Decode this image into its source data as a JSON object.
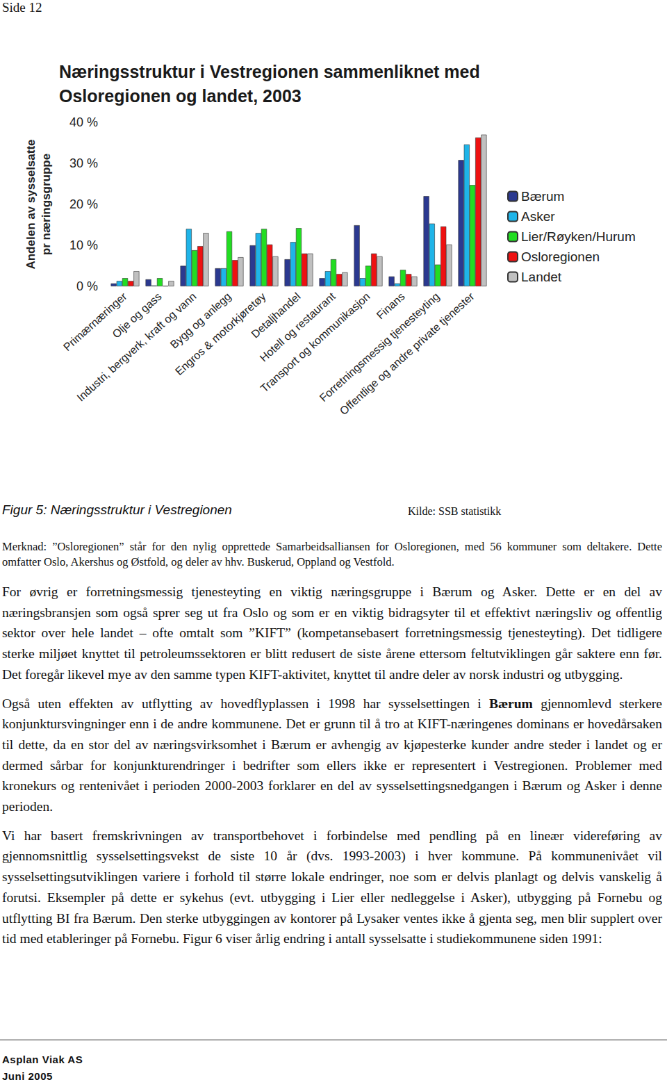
{
  "header": "Side 12",
  "chart_data": {
    "type": "bar",
    "title": "Næringsstruktur i Vestregionen sammenliknet med\nOsloregionen og landet, 2003",
    "y_label": "Andelen av sysselsatte\npr næringsgruppe",
    "categories": [
      "Primærnæringer",
      "Olje og gass",
      "Industri, bergverk, kraft og vann",
      "Bygg og anlegg",
      "Engros & motorkjøretøy",
      "Detaljhandel",
      "Hotell og restaurant",
      "Transport og kommunikasjon",
      "Finans",
      "Forretningsmessig tjenesteyting",
      "Offentlige og andre private tjenester"
    ],
    "series": [
      {
        "name": "Bærum",
        "color": "#2b3990",
        "values": [
          0.7,
          1.7,
          5.0,
          4.4,
          10.0,
          6.6,
          2.0,
          14.9,
          2.4,
          22.0,
          30.8
        ]
      },
      {
        "name": "Asker",
        "color": "#1fb4e8",
        "values": [
          1.3,
          0.2,
          14.0,
          4.4,
          13.0,
          10.8,
          3.7,
          2.0,
          0.7,
          15.3,
          34.6
        ]
      },
      {
        "name": "Lier/Røyken/Hurum",
        "color": "#22dd22",
        "values": [
          2.0,
          2.0,
          8.8,
          13.4,
          14.0,
          14.2,
          6.6,
          5.0,
          4.0,
          5.3,
          24.7
        ]
      },
      {
        "name": "Osloregionen",
        "color": "#ee1111",
        "values": [
          1.3,
          0.1,
          9.8,
          6.4,
          10.2,
          8.0,
          3.0,
          8.0,
          3.0,
          14.6,
          36.3
        ]
      },
      {
        "name": "Landet",
        "color": "#c0c0c0",
        "values": [
          3.7,
          1.3,
          13.0,
          7.1,
          7.3,
          8.0,
          3.4,
          7.3,
          2.4,
          10.2,
          37.0
        ]
      }
    ],
    "ylim": [
      0,
      40
    ],
    "yticks": [
      {
        "value": 0,
        "label": "0 %"
      },
      {
        "value": 10,
        "label": "10 %"
      },
      {
        "value": 20,
        "label": "20 %"
      },
      {
        "value": 30,
        "label": "30 %"
      },
      {
        "value": 40,
        "label": "40 %"
      }
    ],
    "grid": false,
    "legend": "right"
  },
  "caption": "Figur 5: Næringsstruktur i Vestregionen",
  "source": "Kilde: SSB statistikk",
  "note": "Merknad: ”Osloregionen” står for den nylig opprettede Samarbeidsalliansen for Osloregionen, med 56 kommuner som deltakere. Dette omfatter Oslo, Akershus og Østfold, og deler av hhv. Buskerud, Oppland og Vestfold.",
  "paragraphs": [
    [
      {
        "text": "For øvrig er forretningsmessig tjenesteyting en viktig næringsgruppe i Bærum og Asker. Dette er en del av næringsbransjen som også sprer seg ut fra Oslo og som er en viktig bidragsyter til et effektivt næringsliv og offentlig sektor over hele landet – ofte omtalt som ”KIFT” (kompetansebasert forretningsmessig tjenesteyting). Det tidligere sterke miljøet knyttet til petroleumssektoren er blitt redusert de siste årene ettersom feltutviklingen går saktere enn før. Det foregår likevel mye av den samme typen KIFT-aktivitet, knyttet til andre deler av norsk industri og utbygging."
      }
    ],
    [
      {
        "text": "Også uten effekten av utflytting av hovedflyplassen i 1998 har sysselsettingen i "
      },
      {
        "text": "Bærum",
        "bold": true
      },
      {
        "text": " gjennomlevd sterkere konjunktursvingninger enn i de andre kommunene. Det er grunn til å tro at KIFT-næringenes dominans er hovedårsaken til dette, da en stor del av næringsvirksomhet i Bærum er avhengig av kjøpesterke kunder andre steder i landet og er dermed sårbar for konjunkturendringer i bedrifter som ellers ikke er representert i Vestregionen. Problemer med kronekurs og rentenivået i perioden 2000-2003 forklarer en del av sysselsettingsnedgangen i Bærum og Asker i denne perioden."
      }
    ],
    [
      {
        "text": "Vi har basert fremskrivningen av transportbehovet i forbindelse med pendling på en lineær videreføring av gjennomsnittlig sysselsettingsvekst de siste 10 år (dvs. 1993-2003) i hver kommune. På kommunenivået vil sysselsettingsutviklingen variere i forhold til større lokale endringer, noe som er delvis planlagt og delvis vanskelig å forutsi. Eksempler på dette er sykehus (evt. utbygging i Lier eller nedleggelse i Asker), utbygging på Fornebu og utflytting BI fra Bærum. Den sterke utbyggingen av kontorer på Lysaker ventes ikke å gjenta seg, men blir supplert over tid med etableringer på Fornebu. Figur 6 viser årlig endring i antall sysselsatte i studiekommunene siden 1991:"
      }
    ]
  ],
  "footer": [
    "Asplan Viak AS",
    "Juni 2005"
  ]
}
